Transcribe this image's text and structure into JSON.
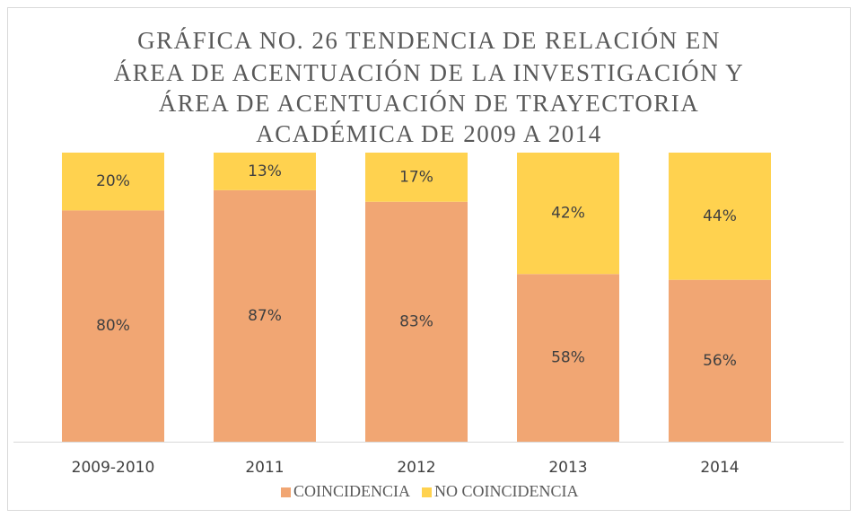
{
  "chart_data": {
    "type": "stacked_bar",
    "title": [
      "GRÁFICA NO. 26  TENDENCIA DE RELACIÓN EN",
      "ÁREA DE ACENTUACIÓN DE LA INVESTIGACIÓN Y",
      "ÁREA DE ACENTUACIÓN DE TRAYECTORIA",
      "ACADÉMICA DE 2009 A 2014"
    ],
    "categories": [
      "2009-2010",
      "2011",
      "2012",
      "2013",
      "2014"
    ],
    "series": [
      {
        "name": "COINCIDENCIA",
        "color": "#F1A673",
        "values": [
          80,
          87,
          83,
          58,
          56
        ],
        "value_labels": [
          "80%",
          "87%",
          "83%",
          "58%",
          "56%"
        ]
      },
      {
        "name": "NO COINCIDENCIA",
        "color": "#FFD24F",
        "values": [
          20,
          13,
          17,
          42,
          44
        ],
        "value_labels": [
          "20%",
          "13%",
          "17%",
          "42%",
          "44%"
        ]
      }
    ],
    "ylim": [
      0,
      100
    ],
    "legend": "bottom"
  }
}
